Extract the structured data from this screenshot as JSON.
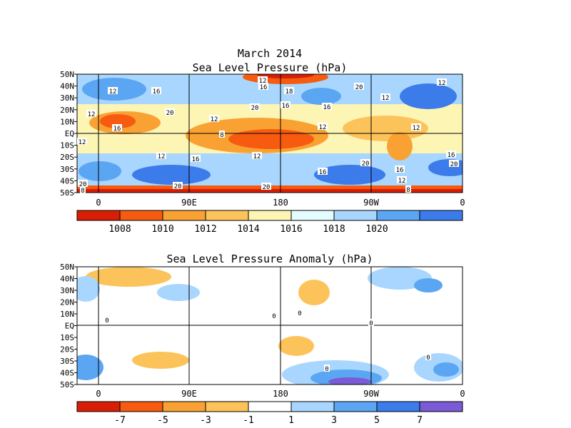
{
  "figure": {
    "title": "March 2014",
    "panels": [
      {
        "title": "Sea Level Pressure (hPa)",
        "lat_labels": [
          "50N",
          "40N",
          "30N",
          "20N",
          "10N",
          "EQ",
          "10S",
          "20S",
          "30S",
          "40S",
          "50S"
        ],
        "lon_labels": [
          "0",
          "90E",
          "180",
          "90W",
          "0"
        ],
        "colorbar": {
          "labels": [
            "1008",
            "1010",
            "1012",
            "1014",
            "1016",
            "1018",
            "1020"
          ],
          "colors": [
            "#d81e05",
            "#f65b0f",
            "#f9a233",
            "#fdc35b",
            "#fdf5b4",
            "#e4fbff",
            "#a8d6fe",
            "#5ba6f3",
            "#3c7bea"
          ]
        },
        "contour_labels": [
          "12",
          "16",
          "20",
          "12",
          "16",
          "12",
          "8",
          "12",
          "16",
          "18",
          "20",
          "16",
          "16",
          "20",
          "12",
          "12",
          "12",
          "12",
          "12",
          "12",
          "16",
          "12",
          "16",
          "20",
          "16",
          "20",
          "20",
          "20",
          "16",
          "12",
          "8",
          "20",
          "8"
        ]
      },
      {
        "title": "Sea Level Pressure Anomaly (hPa)",
        "lat_labels": [
          "50N",
          "40N",
          "30N",
          "20N",
          "10N",
          "EQ",
          "10S",
          "20S",
          "30S",
          "40S",
          "50S"
        ],
        "lon_labels": [
          "0",
          "90E",
          "180",
          "90W",
          "0"
        ],
        "colorbar": {
          "labels": [
            "-7",
            "-5",
            "-3",
            "-1",
            "1",
            "3",
            "5",
            "7"
          ],
          "colors": [
            "#d81e05",
            "#f65b0f",
            "#f9a233",
            "#fdc35b",
            "#ffffff",
            "#a8d6fe",
            "#5ba6f3",
            "#3c7bea",
            "#7b5ad6"
          ]
        },
        "contour_labels": [
          "0",
          "0",
          "0",
          "0",
          "0",
          "0"
        ]
      }
    ]
  }
}
